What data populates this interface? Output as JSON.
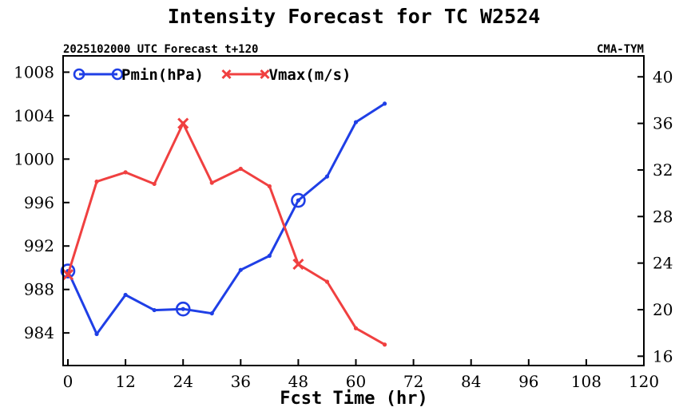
{
  "chart_data": {
    "type": "line",
    "title": "Intensity Forecast for TC W2524",
    "subtitle_left": "2025102000 UTC Forecast t+120",
    "subtitle_right": "CMA-TYM",
    "xlabel": "Fcst Time (hr)",
    "xlim": [
      -1,
      120
    ],
    "xticks": [
      0,
      12,
      24,
      36,
      48,
      60,
      72,
      84,
      96,
      108,
      120
    ],
    "y_left": {
      "lim": [
        981,
        1009.5
      ],
      "ticks": [
        984,
        988,
        992,
        996,
        1000,
        1004,
        1008
      ]
    },
    "y_right": {
      "lim": [
        15.2,
        41.8
      ],
      "ticks": [
        16,
        20,
        24,
        28,
        32,
        36,
        40
      ]
    },
    "x": [
      0,
      6,
      12,
      18,
      24,
      30,
      36,
      42,
      48,
      54,
      60,
      66
    ],
    "series": [
      {
        "name": "Pmin(hPa)",
        "axis": "left",
        "color": "#1f3fe6",
        "marker": "circle",
        "marker_at": [
          0,
          24,
          48
        ],
        "values": [
          989.7,
          983.9,
          987.5,
          986.1,
          986.2,
          985.8,
          989.8,
          991.1,
          996.2,
          998.4,
          1003.4,
          1005.1
        ]
      },
      {
        "name": "Vmax(m/s)",
        "axis": "right",
        "color": "#f04040",
        "marker": "x",
        "marker_at": [
          0,
          24,
          48
        ],
        "values": [
          23.0,
          31.0,
          31.8,
          30.8,
          36.0,
          30.9,
          32.1,
          30.6,
          23.9,
          22.4,
          18.4,
          17.0
        ]
      }
    ],
    "legend_position": "top-left"
  }
}
